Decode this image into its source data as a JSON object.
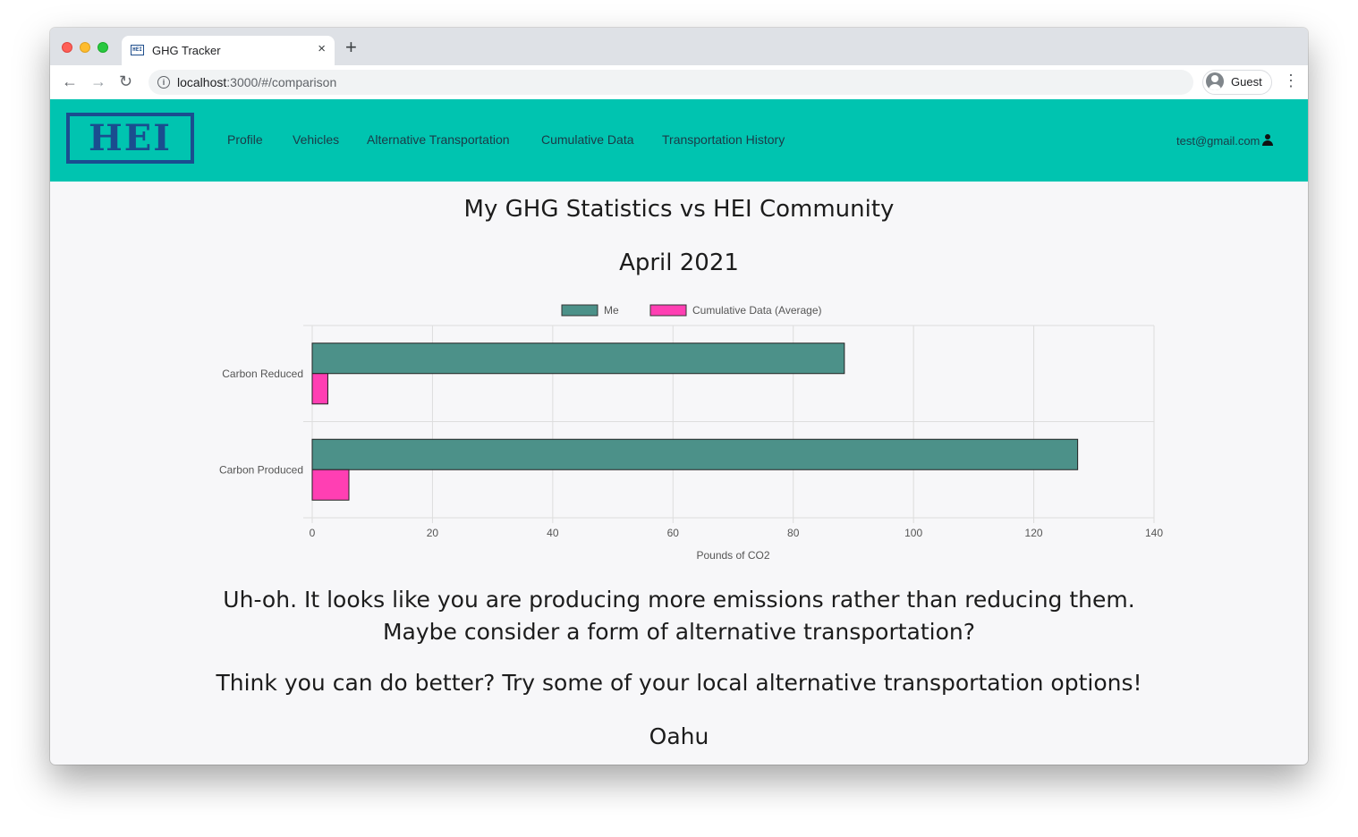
{
  "browser": {
    "tab_title": "GHG Tracker",
    "tab_close": "×",
    "new_tab": "+",
    "url_host": "localhost",
    "url_path": ":3000/#/comparison",
    "back": "←",
    "forward": "→",
    "reload": "↻",
    "info": "i",
    "profile_label": "Guest",
    "menu": "⋮"
  },
  "navbar": {
    "logo_text": "HEI",
    "links": [
      "Profile",
      "Vehicles",
      "Alternative Transportation",
      "Cumulative Data",
      "Transportation History"
    ],
    "user_email": "test@gmail.com"
  },
  "page": {
    "title": "My GHG Statistics vs HEI Community",
    "month": "April 2021",
    "message_line1": "Uh-oh. It looks like you are producing more emissions rather than reducing them.",
    "message_line2": "Maybe consider a form of alternative transportation?",
    "cta": "Think you can do better? Try some of your local alternative transportation options!",
    "island": "Oahu"
  },
  "colors": {
    "navbar": "#00c4b0",
    "me": "#4c9189",
    "average": "#ff3fb3"
  },
  "chart_data": {
    "type": "bar",
    "orientation": "horizontal",
    "categories": [
      "Carbon Reduced",
      "Carbon Produced"
    ],
    "series": [
      {
        "name": "Me",
        "values": [
          88.5,
          127.3
        ]
      },
      {
        "name": "Cumulative Data (Average)",
        "values": [
          2.6,
          6.1
        ]
      }
    ],
    "xlabel": "Pounds of CO2",
    "xlim": [
      0,
      140
    ],
    "xticks": [
      0,
      20,
      40,
      60,
      80,
      100,
      120,
      140
    ],
    "legend_position": "top-center",
    "grid": true
  }
}
